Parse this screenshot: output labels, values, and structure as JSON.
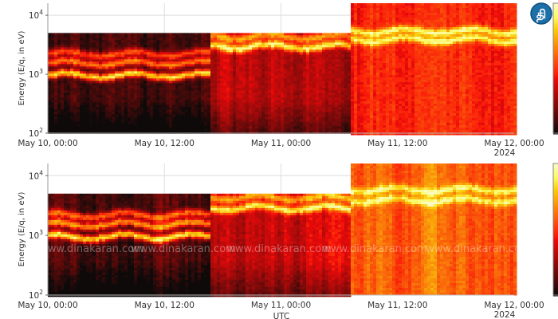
{
  "logo": {
    "text": "தி",
    "color": "#1d6fa8"
  },
  "watermark": "www.dinakaran.com",
  "chart_data": [
    {
      "type": "heatmap",
      "title": "",
      "xlabel": "",
      "ylabel": "Energy (E/q, in eV)",
      "x_ticks": [
        "May 10, 00:00",
        "May 10, 12:00",
        "May 11, 00:00",
        "May 11, 12:00",
        "May 12, 00:00"
      ],
      "x_year_label": "2024",
      "x_range_hours": [
        0,
        48
      ],
      "y_scale": "log",
      "y_ticks": [
        {
          "label": "10",
          "exp": "2",
          "value": 100
        },
        {
          "label": "10",
          "exp": "3",
          "value": 1000
        },
        {
          "label": "10",
          "exp": "4",
          "value": 10000
        }
      ],
      "ylim": [
        100,
        16000
      ],
      "grid": true,
      "colormap": "afmhot",
      "segments": [
        {
          "hours": [
            0,
            16.5
          ],
          "max_energy": 5000,
          "base": 0.1,
          "bands": [
            {
              "energy": 1000,
              "level": 0.75
            },
            {
              "energy": 1600,
              "level": 0.55
            },
            {
              "energy": 2300,
              "level": 0.45
            }
          ]
        },
        {
          "hours": [
            16.5,
            31
          ],
          "max_energy": 5000,
          "base": 0.33,
          "bands": [
            {
              "energy": 3100,
              "level": 0.6
            },
            {
              "energy": 4500,
              "level": 0.4
            }
          ]
        },
        {
          "hours": [
            31,
            48
          ],
          "max_energy": 16000,
          "base": 0.45,
          "bands": [
            {
              "energy": 4000,
              "level": 0.45
            },
            {
              "energy": 5600,
              "level": 0.45
            }
          ]
        }
      ]
    },
    {
      "type": "heatmap",
      "title": "",
      "xlabel": "UTC",
      "ylabel": "Energy (E/q, in eV)",
      "x_ticks": [
        "May 10, 00:00",
        "May 10, 12:00",
        "May 11, 00:00",
        "May 11, 12:00",
        "May 12, 00:00"
      ],
      "x_year_label": "2024",
      "x_range_hours": [
        0,
        48
      ],
      "y_scale": "log",
      "y_ticks": [
        {
          "label": "10",
          "exp": "2",
          "value": 100
        },
        {
          "label": "10",
          "exp": "3",
          "value": 1000
        },
        {
          "label": "10",
          "exp": "4",
          "value": 10000
        }
      ],
      "ylim": [
        100,
        16000
      ],
      "grid": true,
      "colormap": "afmhot",
      "segments": [
        {
          "hours": [
            0,
            16.5
          ],
          "max_energy": 5000,
          "base": 0.12,
          "bands": [
            {
              "energy": 1000,
              "level": 0.75
            },
            {
              "energy": 1600,
              "level": 0.6
            },
            {
              "energy": 2300,
              "level": 0.5
            }
          ]
        },
        {
          "hours": [
            16.5,
            31
          ],
          "max_energy": 5000,
          "base": 0.38,
          "bands": [
            {
              "energy": 3000,
              "level": 0.55
            },
            {
              "energy": 4500,
              "level": 0.4
            }
          ]
        },
        {
          "hours": [
            31,
            48
          ],
          "max_energy": 16000,
          "base": 0.6,
          "bands": [
            {
              "energy": 4000,
              "level": 0.35
            },
            {
              "energy": 6000,
              "level": 0.35
            }
          ]
        }
      ]
    }
  ]
}
